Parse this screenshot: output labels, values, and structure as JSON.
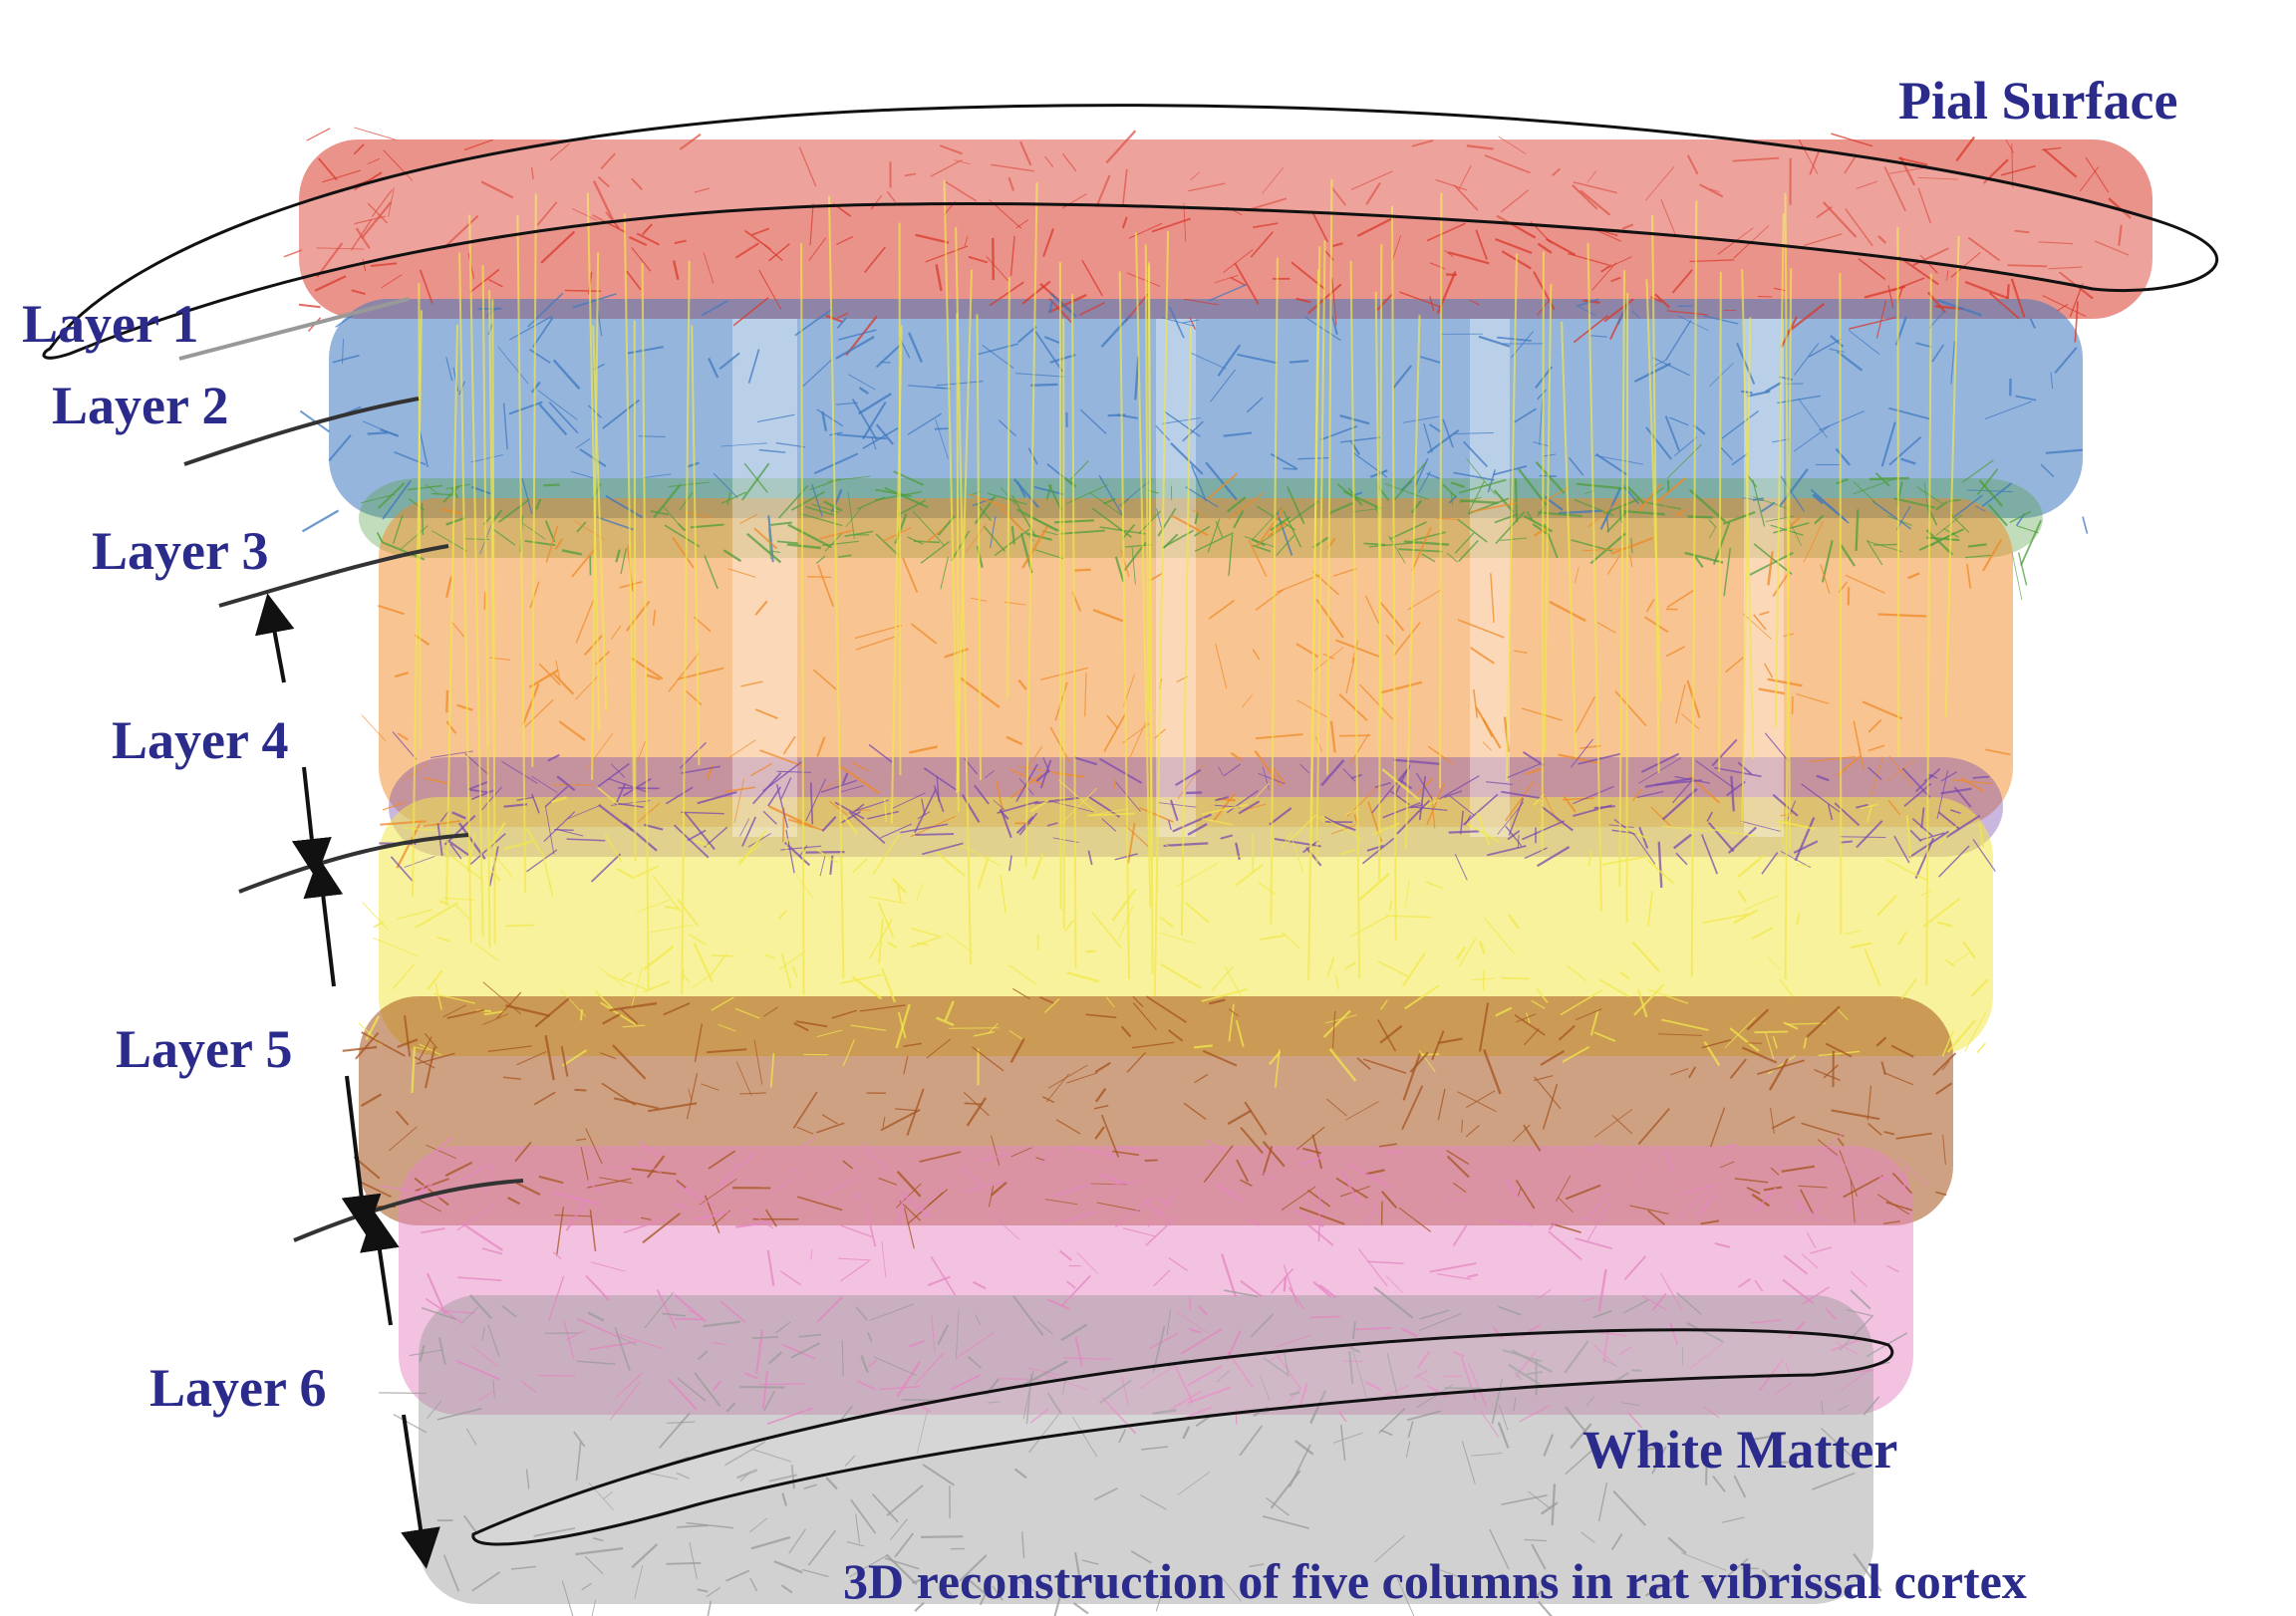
{
  "figure": {
    "pial_surface_label": "Pial Surface",
    "white_matter_label": "White Matter",
    "caption": "3D reconstruction of five columns in rat vibrissal cortex",
    "layers": [
      {
        "label": "Layer 1",
        "color": "#d93a2b"
      },
      {
        "label": "Layer 2",
        "color": "#3f78c0"
      },
      {
        "label": "Layer 3",
        "color": "#7b4ab0"
      },
      {
        "label": "Layer 4",
        "color": "#ef8a26"
      },
      {
        "label": "Layer 5",
        "color": "#f2e84a"
      },
      {
        "label": "Layer 6",
        "color": "#e585c2"
      }
    ],
    "extra_colors": {
      "layer3_green": "#4f9e3c",
      "layer5_brown": "#a5541e",
      "white_matter_gray": "#9a9a9a",
      "label_color": "#2b2b8c"
    },
    "column_count": 5
  }
}
